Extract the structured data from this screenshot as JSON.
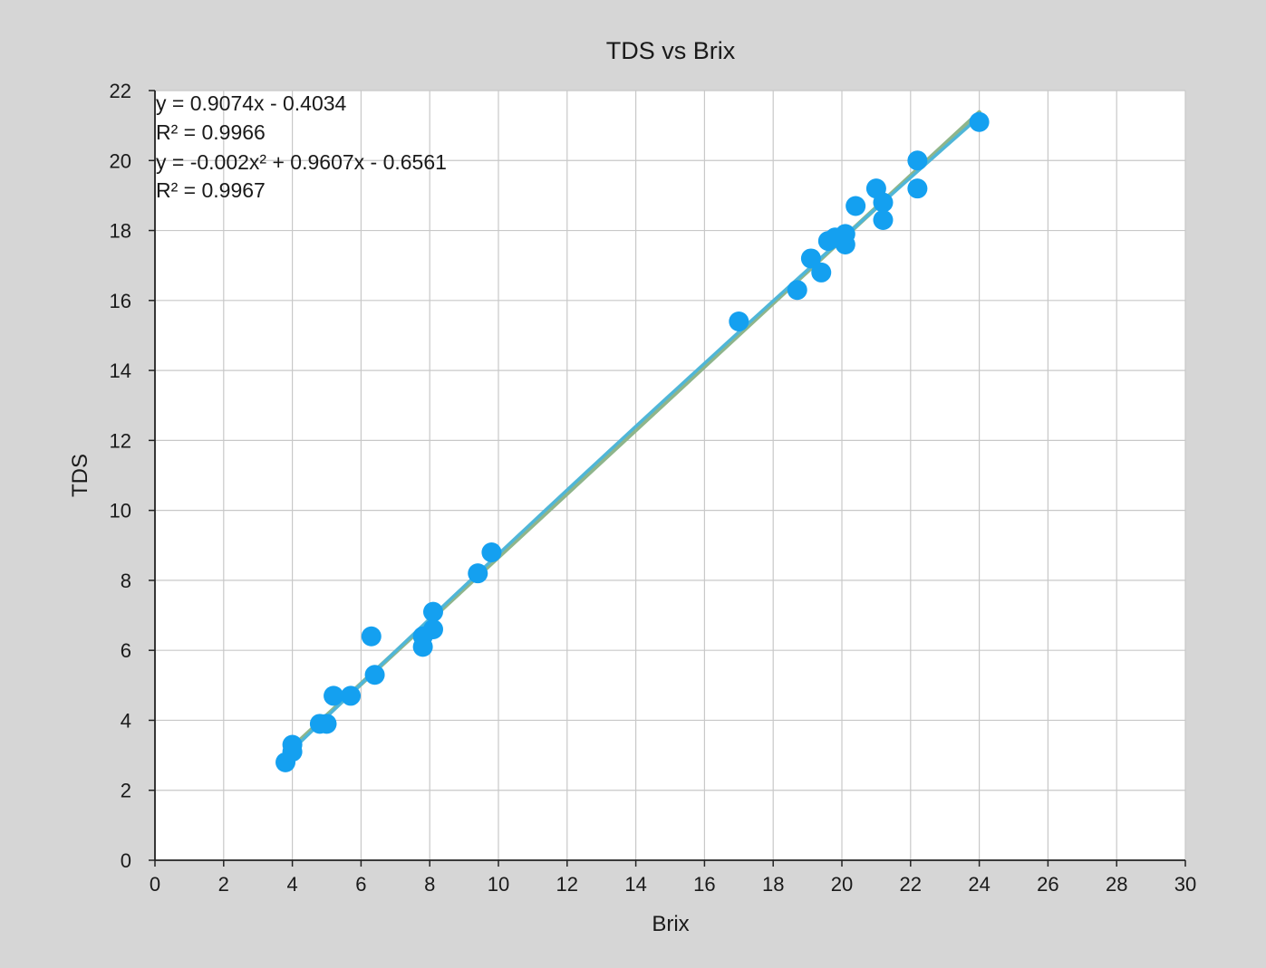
{
  "chart_data": {
    "type": "scatter",
    "title": "TDS vs Brix",
    "xlabel": "Brix",
    "ylabel": "TDS",
    "xlim": [
      0,
      30
    ],
    "ylim": [
      0,
      22
    ],
    "x_ticks": [
      "0",
      "2",
      "4",
      "6",
      "8",
      "10",
      "12",
      "14",
      "16",
      "18",
      "20",
      "22",
      "24",
      "26",
      "28",
      "30"
    ],
    "y_ticks": [
      "0",
      "2",
      "4",
      "6",
      "8",
      "10",
      "12",
      "14",
      "16",
      "18",
      "20",
      "22"
    ],
    "grid": true,
    "legend": "none",
    "colors": {
      "points": "#14a0f0",
      "linear_trend": "#8fb58a",
      "poly_trend": "#4fb6d8",
      "plot_bg": "#ffffff",
      "page_bg": "#d6d6d6",
      "grid": "#c8c8c8"
    },
    "series": [
      {
        "points": [
          [
            3.8,
            2.8
          ],
          [
            4.0,
            3.1
          ],
          [
            4.0,
            3.3
          ],
          [
            4.8,
            3.9
          ],
          [
            5.0,
            3.9
          ],
          [
            5.2,
            4.7
          ],
          [
            5.7,
            4.7
          ],
          [
            6.3,
            6.4
          ],
          [
            6.4,
            5.3
          ],
          [
            7.8,
            6.1
          ],
          [
            7.8,
            6.4
          ],
          [
            8.1,
            6.6
          ],
          [
            8.1,
            7.1
          ],
          [
            9.4,
            8.2
          ],
          [
            9.8,
            8.8
          ],
          [
            17.0,
            15.4
          ],
          [
            18.7,
            16.3
          ],
          [
            19.1,
            17.2
          ],
          [
            19.4,
            16.8
          ],
          [
            19.6,
            17.7
          ],
          [
            19.8,
            17.8
          ],
          [
            20.1,
            17.6
          ],
          [
            20.1,
            17.9
          ],
          [
            20.4,
            18.7
          ],
          [
            21.0,
            19.2
          ],
          [
            21.2,
            18.8
          ],
          [
            21.2,
            18.3
          ],
          [
            22.2,
            20.0
          ],
          [
            22.2,
            19.2
          ],
          [
            24.0,
            21.1
          ]
        ]
      }
    ],
    "trendlines": [
      {
        "kind": "linear",
        "coefficients": {
          "a": 0.9074,
          "b": -0.4034
        },
        "x_range": [
          3.8,
          24.0
        ],
        "equation": "y = 0.9074x - 0.4034",
        "r2": "R² = 0.9966"
      },
      {
        "kind": "polynomial",
        "coefficients": {
          "a": -0.002,
          "b": 0.9607,
          "c": -0.6561
        },
        "x_range": [
          3.8,
          24.0
        ],
        "equation": "y = -0.002x² + 0.9607x - 0.6561",
        "r2": "R² = 0.9967"
      }
    ]
  }
}
